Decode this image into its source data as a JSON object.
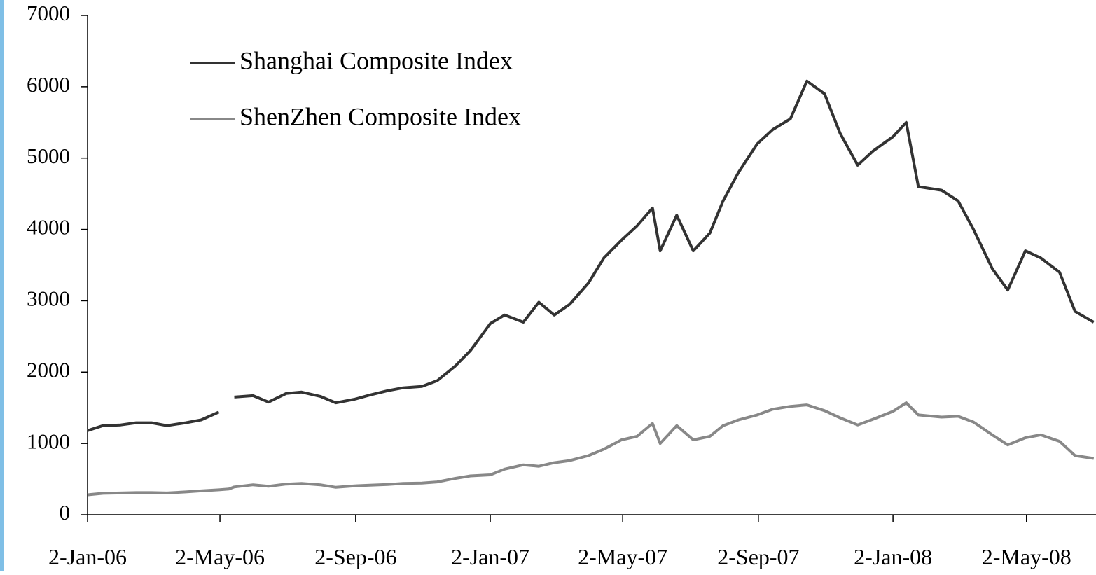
{
  "chart_data": {
    "type": "line",
    "x": [
      "2006-01-02",
      "2006-01-16",
      "2006-02-01",
      "2006-02-15",
      "2006-03-01",
      "2006-03-15",
      "2006-04-01",
      "2006-04-15",
      "2006-05-01",
      "2006-05-10",
      "2006-05-15",
      "2006-06-01",
      "2006-06-15",
      "2006-07-01",
      "2006-07-15",
      "2006-08-01",
      "2006-08-15",
      "2006-09-01",
      "2006-09-15",
      "2006-10-01",
      "2006-10-15",
      "2006-11-01",
      "2006-11-15",
      "2006-12-01",
      "2006-12-15",
      "2007-01-02",
      "2007-01-15",
      "2007-02-01",
      "2007-02-15",
      "2007-03-01",
      "2007-03-15",
      "2007-04-01",
      "2007-04-15",
      "2007-05-01",
      "2007-05-15",
      "2007-05-29",
      "2007-06-05",
      "2007-06-20",
      "2007-07-05",
      "2007-07-20",
      "2007-08-01",
      "2007-08-15",
      "2007-09-01",
      "2007-09-15",
      "2007-10-01",
      "2007-10-16",
      "2007-11-01",
      "2007-11-15",
      "2007-12-01",
      "2007-12-15",
      "2008-01-02",
      "2008-01-14",
      "2008-01-25",
      "2008-02-15",
      "2008-03-01",
      "2008-03-15",
      "2008-04-01",
      "2008-04-15",
      "2008-05-01",
      "2008-05-15",
      "2008-06-01",
      "2008-06-15",
      "2008-07-02"
    ],
    "series": [
      {
        "name": "Shanghai Composite Index",
        "color": "#333333",
        "values": [
          1180,
          1250,
          1260,
          1290,
          1290,
          1250,
          1290,
          1330,
          1440,
          null,
          1650,
          1670,
          1580,
          1700,
          1720,
          1660,
          1570,
          1620,
          1680,
          1740,
          1780,
          1800,
          1880,
          2080,
          2300,
          2680,
          2800,
          2700,
          2980,
          2800,
          2950,
          3250,
          3600,
          3850,
          4050,
          4300,
          3700,
          4200,
          3700,
          3950,
          4400,
          4800,
          5200,
          5400,
          5550,
          6080,
          5900,
          5350,
          4900,
          5100,
          5300,
          5500,
          4600,
          4550,
          4400,
          4000,
          3450,
          3150,
          3700,
          3600,
          3400,
          2850,
          2700
        ]
      },
      {
        "name": "ShenZhen Composite Index",
        "color": "#888888",
        "values": [
          280,
          300,
          305,
          310,
          310,
          305,
          320,
          335,
          350,
          360,
          390,
          420,
          400,
          430,
          440,
          420,
          385,
          405,
          415,
          425,
          440,
          445,
          460,
          510,
          545,
          560,
          640,
          700,
          680,
          730,
          760,
          830,
          920,
          1050,
          1100,
          1280,
          1000,
          1250,
          1050,
          1100,
          1250,
          1330,
          1400,
          1480,
          1520,
          1540,
          1460,
          1360,
          1260,
          1340,
          1450,
          1570,
          1400,
          1370,
          1380,
          1300,
          1120,
          980,
          1080,
          1120,
          1030,
          830,
          790
        ]
      }
    ],
    "xlim": [
      "2006-01-02",
      "2008-07-04"
    ],
    "xticks": [
      {
        "value": "2006-01-02",
        "label": "2-Jan-06"
      },
      {
        "value": "2006-05-02",
        "label": "2-May-06"
      },
      {
        "value": "2006-09-02",
        "label": "2-Sep-06"
      },
      {
        "value": "2007-01-02",
        "label": "2-Jan-07"
      },
      {
        "value": "2007-05-02",
        "label": "2-May-07"
      },
      {
        "value": "2007-09-02",
        "label": "2-Sep-07"
      },
      {
        "value": "2008-01-02",
        "label": "2-Jan-08"
      },
      {
        "value": "2008-05-02",
        "label": "2-May-08"
      }
    ],
    "ylim": [
      0,
      7000
    ],
    "yticks": [
      0,
      1000,
      2000,
      3000,
      4000,
      5000,
      6000,
      7000
    ],
    "grid": false,
    "legend": "upper left"
  }
}
